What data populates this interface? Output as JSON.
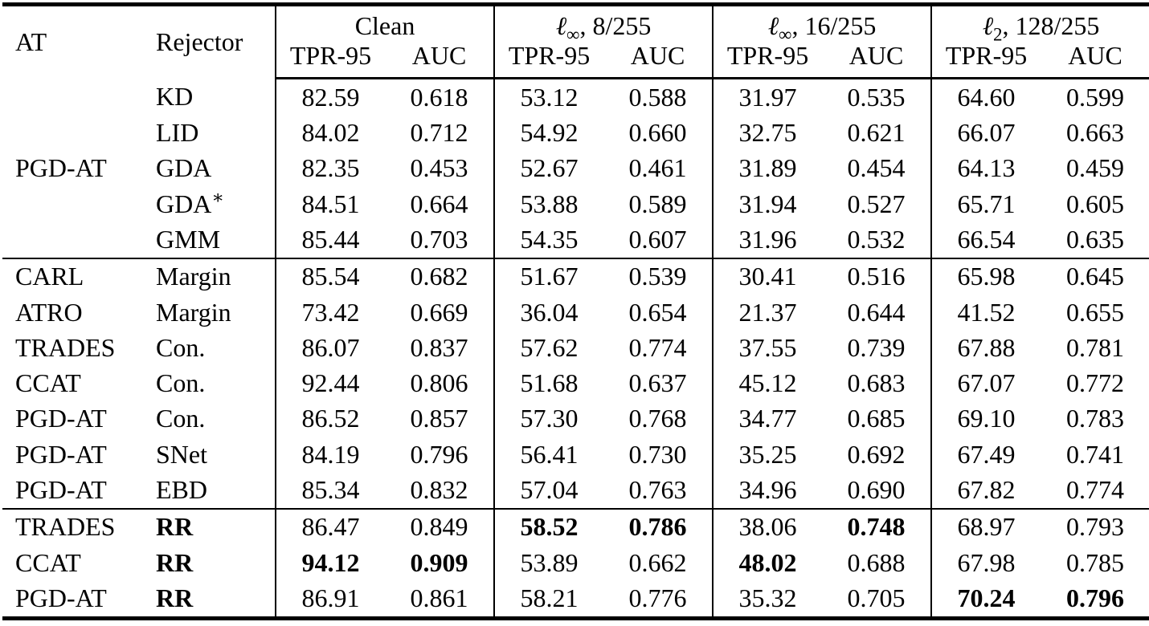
{
  "colors": {
    "text": "#000000",
    "background": "#ffffff",
    "rule": "#000000"
  },
  "table": {
    "header": {
      "at": "AT",
      "rejector": "Rejector",
      "tpr": "TPR-95",
      "auc": "AUC",
      "groups": [
        {
          "label": "Clean",
          "symbol": "",
          "sub": "",
          "rest": ""
        },
        {
          "label": "",
          "symbol": "ℓ",
          "sub": "∞",
          "rest": ", 8/255"
        },
        {
          "label": "",
          "symbol": "ℓ",
          "sub": "∞",
          "rest": ", 16/255"
        },
        {
          "label": "",
          "symbol": "ℓ",
          "sub": "2",
          "rest": ", 128/255"
        }
      ]
    },
    "row_groups": [
      {
        "rows": [
          {
            "at": "",
            "rejector": "KD",
            "rejector_bold": false,
            "values": [
              "82.59",
              "0.618",
              "53.12",
              "0.588",
              "31.97",
              "0.535",
              "64.60",
              "0.599"
            ]
          },
          {
            "at": "",
            "rejector": "LID",
            "rejector_bold": false,
            "values": [
              "84.02",
              "0.712",
              "54.92",
              "0.660",
              "32.75",
              "0.621",
              "66.07",
              "0.663"
            ]
          },
          {
            "at": "PGD-AT",
            "rejector": "GDA",
            "rejector_bold": false,
            "values": [
              "82.35",
              "0.453",
              "52.67",
              "0.461",
              "31.89",
              "0.454",
              "64.13",
              "0.459"
            ]
          },
          {
            "at": "",
            "rejector": "GDA*",
            "rejector_bold": false,
            "values": [
              "84.51",
              "0.664",
              "53.88",
              "0.589",
              "31.94",
              "0.527",
              "65.71",
              "0.605"
            ]
          },
          {
            "at": "",
            "rejector": "GMM",
            "rejector_bold": false,
            "values": [
              "85.44",
              "0.703",
              "54.35",
              "0.607",
              "31.96",
              "0.532",
              "66.54",
              "0.635"
            ]
          }
        ]
      },
      {
        "rows": [
          {
            "at": "CARL",
            "rejector": "Margin",
            "rejector_bold": false,
            "values": [
              "85.54",
              "0.682",
              "51.67",
              "0.539",
              "30.41",
              "0.516",
              "65.98",
              "0.645"
            ]
          },
          {
            "at": "ATRO",
            "rejector": "Margin",
            "rejector_bold": false,
            "values": [
              "73.42",
              "0.669",
              "36.04",
              "0.654",
              "21.37",
              "0.644",
              "41.52",
              "0.655"
            ]
          },
          {
            "at": "TRADES",
            "rejector": "Con.",
            "rejector_bold": false,
            "values": [
              "86.07",
              "0.837",
              "57.62",
              "0.774",
              "37.55",
              "0.739",
              "67.88",
              "0.781"
            ]
          },
          {
            "at": "CCAT",
            "rejector": "Con.",
            "rejector_bold": false,
            "values": [
              "92.44",
              "0.806",
              "51.68",
              "0.637",
              "45.12",
              "0.683",
              "67.07",
              "0.772"
            ]
          },
          {
            "at": "PGD-AT",
            "rejector": "Con.",
            "rejector_bold": false,
            "values": [
              "86.52",
              "0.857",
              "57.30",
              "0.768",
              "34.77",
              "0.685",
              "69.10",
              "0.783"
            ]
          },
          {
            "at": "PGD-AT",
            "rejector": "SNet",
            "rejector_bold": false,
            "values": [
              "84.19",
              "0.796",
              "56.41",
              "0.730",
              "35.25",
              "0.692",
              "67.49",
              "0.741"
            ]
          },
          {
            "at": "PGD-AT",
            "rejector": "EBD",
            "rejector_bold": false,
            "values": [
              "85.34",
              "0.832",
              "57.04",
              "0.763",
              "34.96",
              "0.690",
              "67.82",
              "0.774"
            ]
          }
        ]
      },
      {
        "rows": [
          {
            "at": "TRADES",
            "rejector": "RR",
            "rejector_bold": true,
            "values": [
              "86.47",
              "0.849",
              "58.52",
              "0.786",
              "38.06",
              "0.748",
              "68.97",
              "0.793"
            ],
            "bold": [
              false,
              false,
              true,
              true,
              false,
              true,
              false,
              false
            ]
          },
          {
            "at": "CCAT",
            "rejector": "RR",
            "rejector_bold": true,
            "values": [
              "94.12",
              "0.909",
              "53.89",
              "0.662",
              "48.02",
              "0.688",
              "67.98",
              "0.785"
            ],
            "bold": [
              true,
              true,
              false,
              false,
              true,
              false,
              false,
              false
            ]
          },
          {
            "at": "PGD-AT",
            "rejector": "RR",
            "rejector_bold": true,
            "values": [
              "86.91",
              "0.861",
              "58.21",
              "0.776",
              "35.32",
              "0.705",
              "70.24",
              "0.796"
            ],
            "bold": [
              false,
              false,
              false,
              false,
              false,
              false,
              true,
              true
            ]
          }
        ]
      }
    ]
  }
}
